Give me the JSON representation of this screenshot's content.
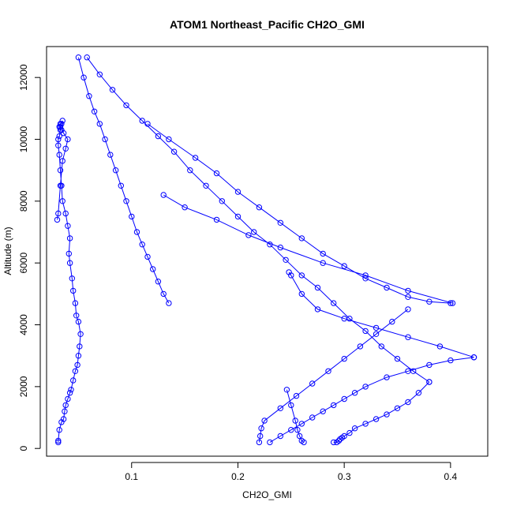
{
  "chart_data": {
    "type": "scatter",
    "title": "ATOM1 Northeast_Pacific CH2O_GMI",
    "xlabel": "CH2O_GMI",
    "ylabel": "Altitude (m)",
    "xlim": [
      0.02,
      0.435
    ],
    "ylim": [
      -250,
      13000
    ],
    "x_ticks": [
      0.1,
      0.2,
      0.3,
      0.4
    ],
    "x_tick_labels": [
      "0.1",
      "0.2",
      "0.3",
      "0.4"
    ],
    "y_ticks": [
      0,
      2000,
      4000,
      6000,
      8000,
      10000,
      12000
    ],
    "y_tick_labels": [
      "0",
      "2000",
      "4000",
      "6000",
      "8000",
      "10000",
      "12000"
    ],
    "grid": false,
    "color": "#0000ff",
    "series": [
      {
        "x": [
          0.031,
          0.031,
          0.032,
          0.034,
          0.036,
          0.037,
          0.038,
          0.04,
          0.042,
          0.043,
          0.045,
          0.047,
          0.049,
          0.05,
          0.051,
          0.052,
          0.05,
          0.048,
          0.047,
          0.045,
          0.044,
          0.042,
          0.041,
          0.042,
          0.04,
          0.038,
          0.035,
          0.034,
          0.033,
          0.032,
          0.031,
          0.031,
          0.032,
          0.033,
          0.033,
          0.034,
          0.035,
          0.033,
          0.032,
          0.034,
          0.036,
          0.04,
          0.038,
          0.035,
          0.033,
          0.031,
          0.03
        ],
        "y": [
          200,
          250,
          600,
          850,
          950,
          1200,
          1400,
          1600,
          1800,
          1900,
          2200,
          2500,
          2700,
          3000,
          3300,
          3700,
          4100,
          4300,
          4700,
          5100,
          5500,
          6000,
          6300,
          6800,
          7200,
          7600,
          8000,
          8500,
          9000,
          9500,
          9800,
          10000,
          10100,
          10300,
          10400,
          10500,
          10600,
          10500,
          10400,
          10300,
          10200,
          10000,
          9700,
          9300,
          8500,
          7600,
          7400
        ]
      },
      {
        "x": [
          0.05,
          0.055,
          0.06,
          0.065,
          0.07,
          0.075,
          0.08,
          0.085,
          0.09,
          0.095,
          0.1,
          0.105,
          0.11,
          0.115,
          0.12,
          0.125,
          0.13,
          0.135
        ],
        "y": [
          12650,
          12000,
          11400,
          10900,
          10500,
          10000,
          9500,
          9000,
          8500,
          8000,
          7500,
          7000,
          6600,
          6200,
          5800,
          5400,
          5000,
          4700
        ]
      },
      {
        "x": [
          0.058,
          0.07,
          0.082,
          0.095,
          0.11,
          0.125,
          0.14,
          0.155,
          0.17,
          0.185,
          0.2,
          0.215,
          0.23,
          0.245,
          0.26,
          0.275,
          0.29,
          0.305,
          0.32,
          0.335,
          0.35,
          0.365,
          0.38
        ],
        "y": [
          12650,
          12100,
          11600,
          11100,
          10600,
          10100,
          9600,
          9000,
          8500,
          8000,
          7500,
          7000,
          6600,
          6100,
          5600,
          5200,
          4700,
          4200,
          3800,
          3300,
          2900,
          2500,
          2150
        ]
      },
      {
        "x": [
          0.38,
          0.37,
          0.36,
          0.35,
          0.34,
          0.33,
          0.32,
          0.31,
          0.305,
          0.3,
          0.298,
          0.296,
          0.295,
          0.293,
          0.29
        ],
        "y": [
          2150,
          1800,
          1500,
          1300,
          1100,
          950,
          800,
          650,
          500,
          400,
          350,
          300,
          250,
          200,
          200
        ]
      },
      {
        "x": [
          0.115,
          0.135,
          0.16,
          0.18,
          0.2,
          0.22,
          0.24,
          0.26,
          0.28,
          0.3,
          0.32,
          0.34,
          0.36,
          0.38,
          0.4
        ],
        "y": [
          10500,
          10000,
          9400,
          8900,
          8300,
          7800,
          7300,
          6800,
          6300,
          5900,
          5500,
          5200,
          4900,
          4750,
          4700
        ]
      },
      {
        "x": [
          0.402,
          0.36,
          0.32,
          0.28,
          0.24,
          0.21,
          0.18,
          0.15,
          0.13
        ],
        "y": [
          4700,
          5100,
          5600,
          6000,
          6500,
          6900,
          7400,
          7800,
          8200
        ]
      },
      {
        "x": [
          0.23,
          0.24,
          0.25,
          0.26,
          0.27,
          0.28,
          0.29,
          0.3,
          0.31,
          0.32,
          0.34,
          0.36,
          0.38,
          0.4,
          0.422
        ],
        "y": [
          200,
          400,
          600,
          800,
          1000,
          1200,
          1400,
          1600,
          1800,
          2000,
          2300,
          2500,
          2700,
          2850,
          2950
        ]
      },
      {
        "x": [
          0.422,
          0.39,
          0.36,
          0.33,
          0.3,
          0.275,
          0.26,
          0.25,
          0.248
        ],
        "y": [
          2950,
          3300,
          3600,
          3900,
          4200,
          4500,
          5000,
          5600,
          5700
        ]
      },
      {
        "x": [
          0.246,
          0.25,
          0.254,
          0.256,
          0.258,
          0.26,
          0.262
        ],
        "y": [
          1900,
          1400,
          900,
          600,
          400,
          250,
          200
        ]
      },
      {
        "x": [
          0.22,
          0.221,
          0.222,
          0.225,
          0.24,
          0.255,
          0.27,
          0.285,
          0.3,
          0.315,
          0.33,
          0.345,
          0.36
        ],
        "y": [
          200,
          400,
          650,
          900,
          1300,
          1700,
          2100,
          2500,
          2900,
          3300,
          3700,
          4100,
          4500
        ]
      }
    ]
  }
}
